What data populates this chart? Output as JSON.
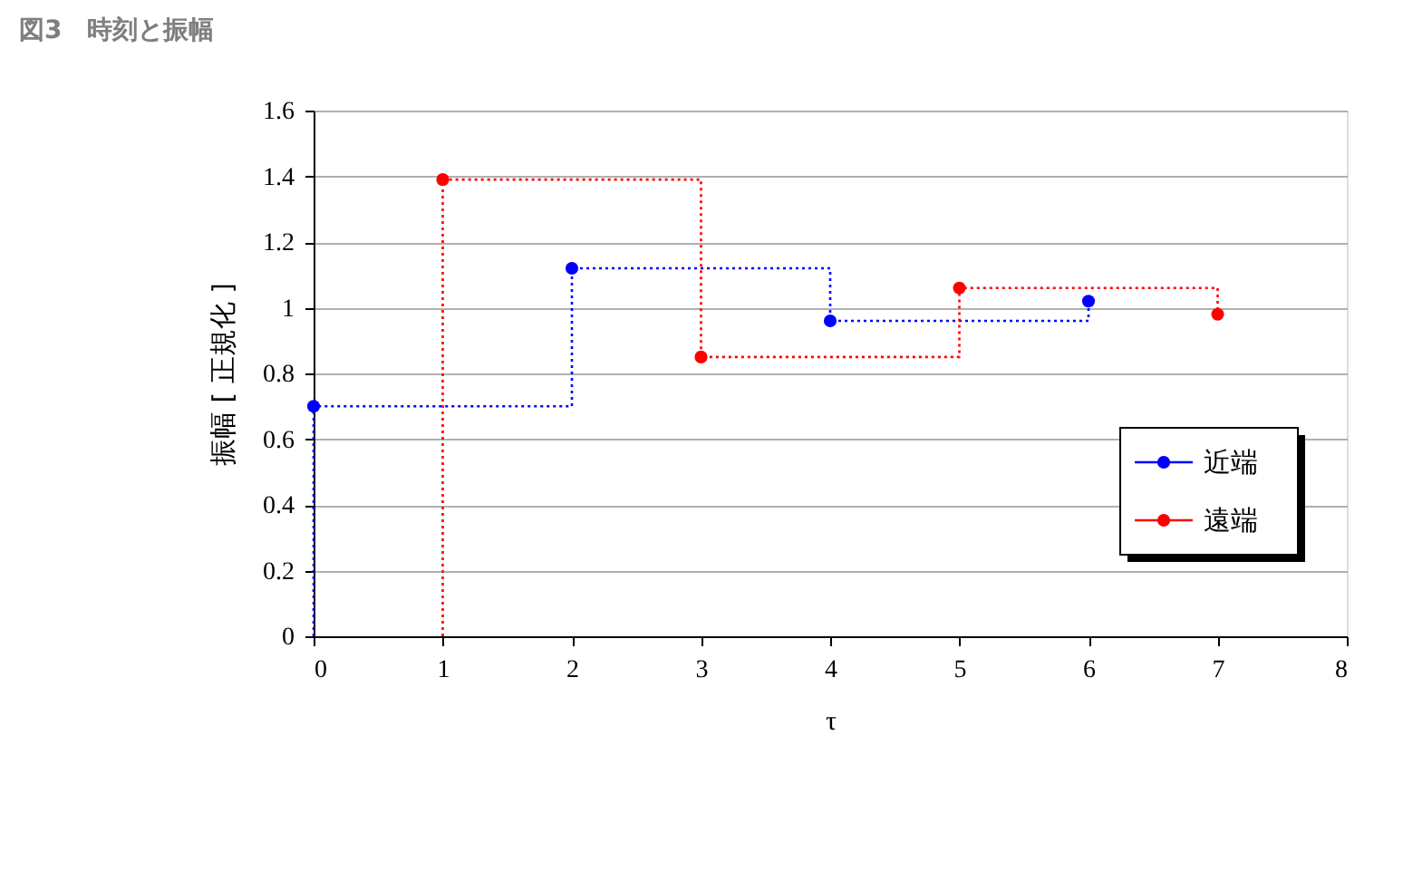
{
  "chart_data": {
    "type": "step",
    "title": "図3　時刻と振幅",
    "xlabel": "τ",
    "ylabel": "振幅 [ 正規化 ]",
    "xlim": [
      0,
      8
    ],
    "xticks": [
      0,
      1,
      2,
      3,
      4,
      5,
      6,
      7,
      8
    ],
    "ylim": [
      0,
      1.6
    ],
    "yticks": [
      0,
      0.2,
      0.4,
      0.6,
      0.8,
      1,
      1.2,
      1.4,
      1.6
    ],
    "grid": "y",
    "legend": "bottom right",
    "line_style": "dotted",
    "series": [
      {
        "name": "近端",
        "color": "#0000ff",
        "marker": "none",
        "x": [
          0,
          0,
          2,
          4,
          6
        ],
        "values": [
          0,
          0.7,
          1.12,
          0.96,
          1.02
        ]
      },
      {
        "name": "遠端",
        "color": "#ff0000",
        "marker": "none",
        "x": [
          1,
          1,
          3,
          5,
          7
        ],
        "values": [
          0,
          1.39,
          0.85,
          1.06,
          0.98
        ]
      },
      {
        "color": "#0000ff",
        "type": "scatter",
        "marker": "circle",
        "x": [
          0,
          2,
          4,
          6
        ],
        "values": [
          0.7,
          1.12,
          0.96,
          1.02
        ]
      },
      {
        "color": "#ff0000",
        "type": "scatter",
        "marker": "circle",
        "x": [
          1,
          3,
          5,
          7
        ],
        "values": [
          1.39,
          0.85,
          1.06,
          0.98
        ]
      }
    ]
  }
}
